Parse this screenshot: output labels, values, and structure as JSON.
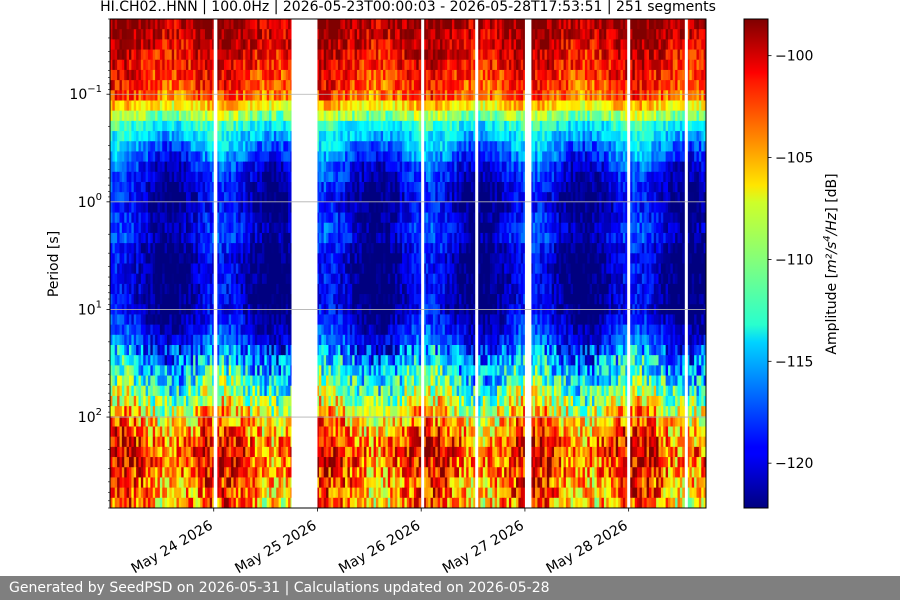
{
  "chart_data": {
    "type": "heatmap",
    "title": "HI.CH02..HNN | 100.0Hz | 2026-05-23T00:00:03 - 2026-05-28T17:53:51 | 251 segments",
    "ylabel": "Period [s]",
    "yscale": "log",
    "ylim_period_s": [
      0.02,
      700
    ],
    "y_inverted": true,
    "xlim": [
      "2026-05-23T00:00:03",
      "2026-05-28T17:53:51"
    ],
    "x_ticks": [
      {
        "date": "2026-05-24",
        "label": "May 24 2026"
      },
      {
        "date": "2026-05-25",
        "label": "May 25 2026"
      },
      {
        "date": "2026-05-26",
        "label": "May 26 2026"
      },
      {
        "date": "2026-05-27",
        "label": "May 27 2026"
      },
      {
        "date": "2026-05-28",
        "label": "May 28 2026"
      }
    ],
    "y_ticks": [
      {
        "period": 0.1,
        "label_base": "10",
        "label_exp": "−1"
      },
      {
        "period": 1,
        "label_base": "10",
        "label_exp": "0"
      },
      {
        "period": 10,
        "label_base": "10",
        "label_exp": "1"
      },
      {
        "period": 100,
        "label_base": "10",
        "label_exp": "2"
      }
    ],
    "grid": "horizontal",
    "colormap": "jet",
    "colorbar": {
      "label_prefix": "Amplitude [",
      "label_unit_base": "m²/s",
      "label_unit_exp": "4",
      "label_unit_tail": "/Hz",
      "label_suffix": "] [dB]",
      "vmin": -122.2,
      "vmax": -98.2,
      "ticks": [
        {
          "value": -100,
          "label": "−100"
        },
        {
          "value": -105,
          "label": "−105"
        },
        {
          "value": -110,
          "label": "−110"
        },
        {
          "value": -115,
          "label": "−115"
        },
        {
          "value": -120,
          "label": "−120"
        }
      ]
    },
    "segments": 251,
    "data_gaps": [
      {
        "start": "2026-05-24T00:00",
        "end": "2026-05-24T00:50"
      },
      {
        "start": "2026-05-24T18:00",
        "end": "2026-05-25T00:00"
      },
      {
        "start": "2026-05-26T00:00",
        "end": "2026-05-26T00:35"
      },
      {
        "start": "2026-05-26T12:30",
        "end": "2026-05-26T13:05"
      },
      {
        "start": "2026-05-27T00:00",
        "end": "2026-05-27T01:30"
      },
      {
        "start": "2026-05-27T23:40",
        "end": "2026-05-28T00:15"
      },
      {
        "start": "2026-05-28T13:00",
        "end": "2026-05-28T13:30"
      }
    ],
    "amplitude_by_period_db": [
      {
        "period": 0.02,
        "db": -98.5
      },
      {
        "period": 0.05,
        "db": -101
      },
      {
        "period": 0.1,
        "db": -103
      },
      {
        "period": 0.2,
        "db": -113
      },
      {
        "period": 0.5,
        "db": -119
      },
      {
        "period": 1,
        "db": -121
      },
      {
        "period": 2,
        "db": -119
      },
      {
        "period": 3,
        "db": -121
      },
      {
        "period": 10,
        "db": -121
      },
      {
        "period": 20,
        "db": -118
      },
      {
        "period": 50,
        "db": -112
      },
      {
        "period": 100,
        "db": -106
      },
      {
        "period": 200,
        "db": -102
      },
      {
        "period": 700,
        "db": -105
      }
    ]
  },
  "footer": {
    "text": "Generated by SeedPSD on 2026-05-31 | Calculations updated on 2026-05-28"
  }
}
